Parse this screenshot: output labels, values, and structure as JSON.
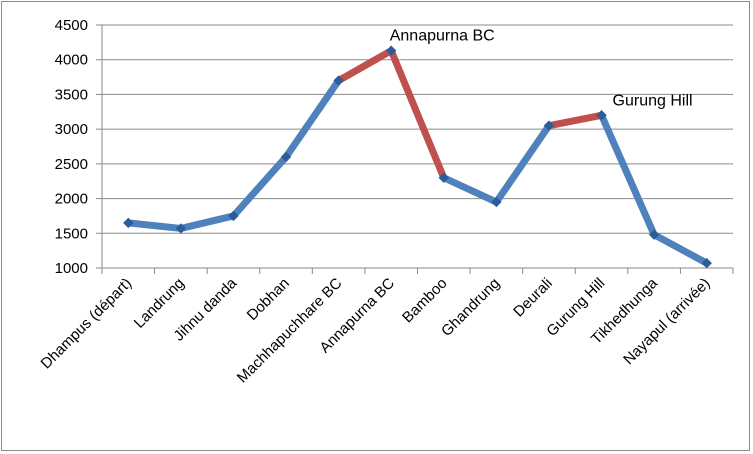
{
  "chart_data": {
    "type": "line",
    "title": "",
    "xlabel": "",
    "ylabel": "",
    "categories": [
      "Dhampus (départ)",
      "Landrung",
      "Jihnu danda",
      "Dobhan",
      "Machhapuchhare BC",
      "Annapurna BC",
      "Bamboo",
      "Ghandrung",
      "Deurali",
      "Gurung Hill",
      "Tikhedhunga",
      "Nayapul (arrivée)"
    ],
    "series": [
      {
        "values": [
          1650,
          1570,
          1750,
          2600,
          3700,
          4130,
          2300,
          1950,
          3050,
          3200,
          1480,
          1070
        ],
        "color": "#4f81bd",
        "highlight_color": "#c0504d",
        "highlight_segments": [
          [
            4,
            5
          ],
          [
            5,
            6
          ],
          [
            8,
            9
          ]
        ]
      }
    ],
    "ylim": [
      1000,
      4500
    ],
    "yticks": [
      1000,
      1500,
      2000,
      2500,
      3000,
      3500,
      4000,
      4500
    ],
    "grid": true,
    "legend": "none",
    "annotations": [
      {
        "text": "Annapurna BC",
        "category_index": 5
      },
      {
        "text": "Gurung Hill",
        "category_index": 9
      }
    ]
  }
}
